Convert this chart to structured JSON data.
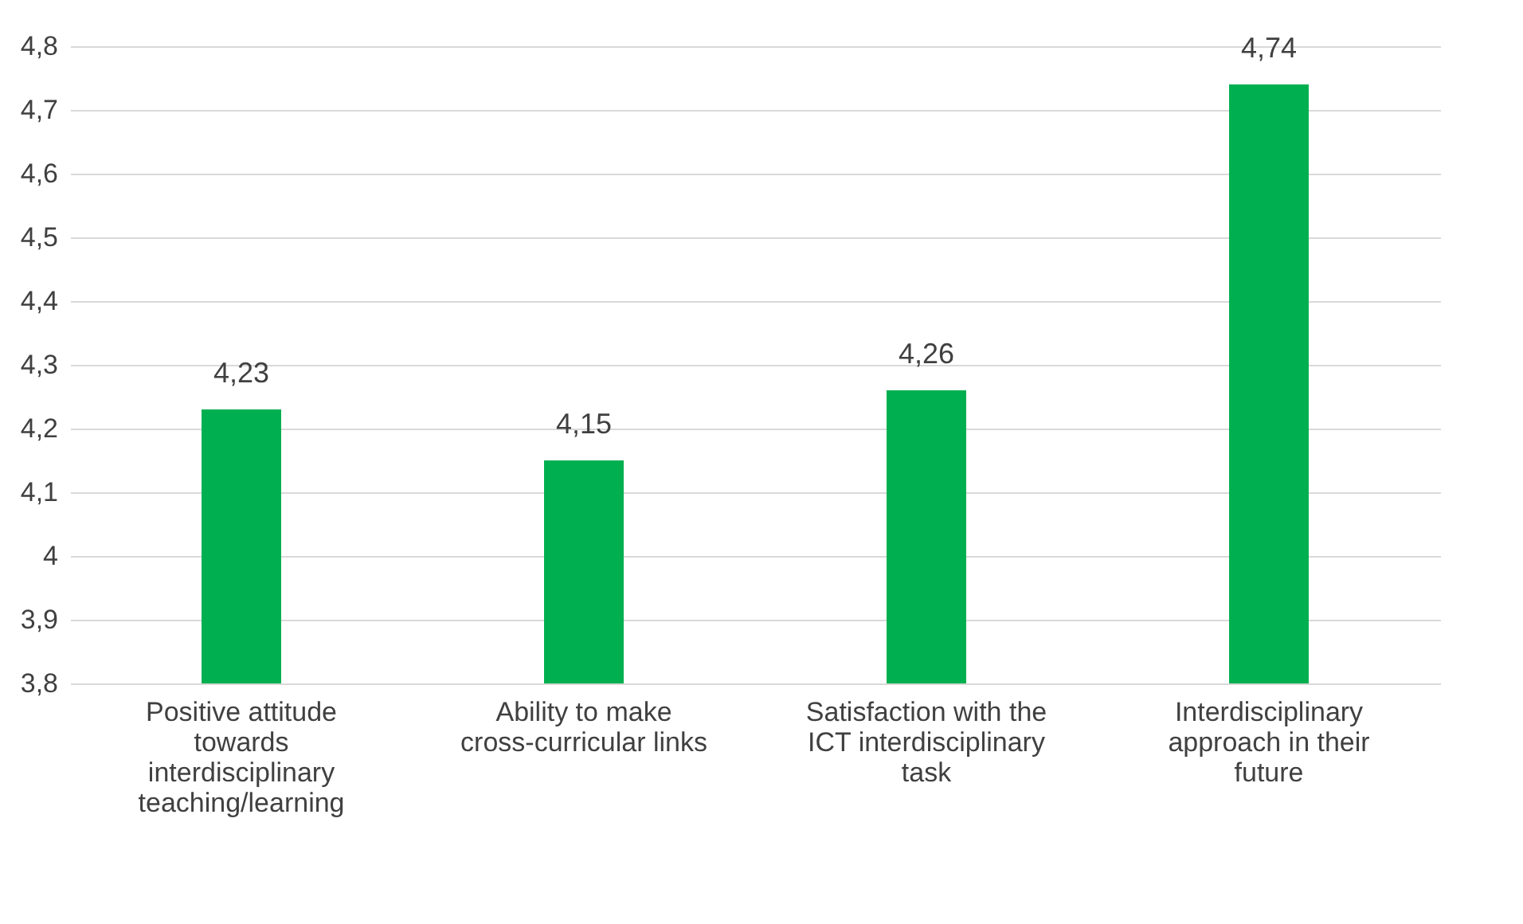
{
  "chart_data": {
    "type": "bar",
    "categories": [
      "Positive attitude towards interdisciplinary teaching/learning",
      "Ability  to make cross-curricular links",
      "Satisfaction with the ICT interdisciplinary task",
      "Interdisciplinary approach in their future"
    ],
    "values": [
      4.23,
      4.15,
      4.26,
      4.74
    ],
    "value_labels": [
      "4,23",
      "4,15",
      "4,26",
      "4,74"
    ],
    "color": "#00b050",
    "ylim": [
      3.8,
      4.8
    ],
    "yticks": [
      {
        "value": 3.8,
        "label": "3,8"
      },
      {
        "value": 3.9,
        "label": "3,9"
      },
      4,
      {
        "value": 4.1,
        "label": "4,1"
      },
      {
        "value": 4.2,
        "label": "4,2"
      },
      {
        "value": 4.3,
        "label": "4,3"
      },
      {
        "value": 4.4,
        "label": "4,4"
      },
      {
        "value": 4.5,
        "label": "4,5"
      },
      {
        "value": 4.6,
        "label": "4,6"
      },
      {
        "value": 4.7,
        "label": "4,7"
      },
      {
        "value": 4.8,
        "label": "4,8"
      }
    ],
    "grid": "y"
  }
}
